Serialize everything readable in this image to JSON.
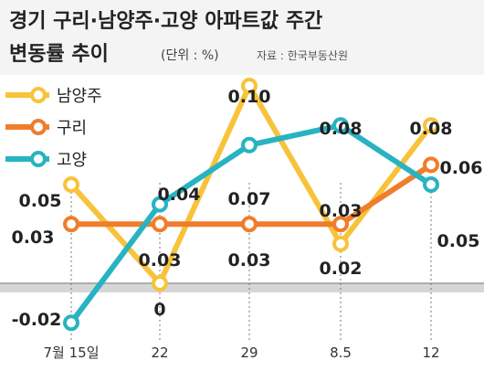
{
  "title_line1": "경기 구리·남양주·고양 아파트값 주간",
  "title_line2": "변동률 추이",
  "unit": "(단위 : %)",
  "source": "자료 : 한국부동산원",
  "chart_data": {
    "type": "line",
    "title": "경기 구리·남양주·고양 아파트값 주간 변동률 추이",
    "categories": [
      "7월 15일",
      "22",
      "29",
      "8.5",
      "12"
    ],
    "ylim": [
      -0.02,
      0.1
    ],
    "series": [
      {
        "name": "남양주",
        "color": "#f7c33a",
        "values": [
          0.05,
          0,
          0.1,
          0.02,
          0.08
        ],
        "labels": [
          "0.05",
          "0",
          "0.10",
          "0.02",
          "0.08"
        ]
      },
      {
        "name": "구리",
        "color": "#f07d2b",
        "values": [
          0.03,
          0.03,
          0.03,
          0.03,
          0.06
        ],
        "labels": [
          "0.03",
          "0.03",
          "0.03",
          "0.03",
          "0.06"
        ]
      },
      {
        "name": "고양",
        "color": "#28b3c2",
        "values": [
          -0.02,
          0.04,
          0.07,
          0.08,
          0.05
        ],
        "labels": [
          "-0.02",
          "0.04",
          "0.07",
          "0.08",
          "0.05"
        ]
      }
    ]
  }
}
